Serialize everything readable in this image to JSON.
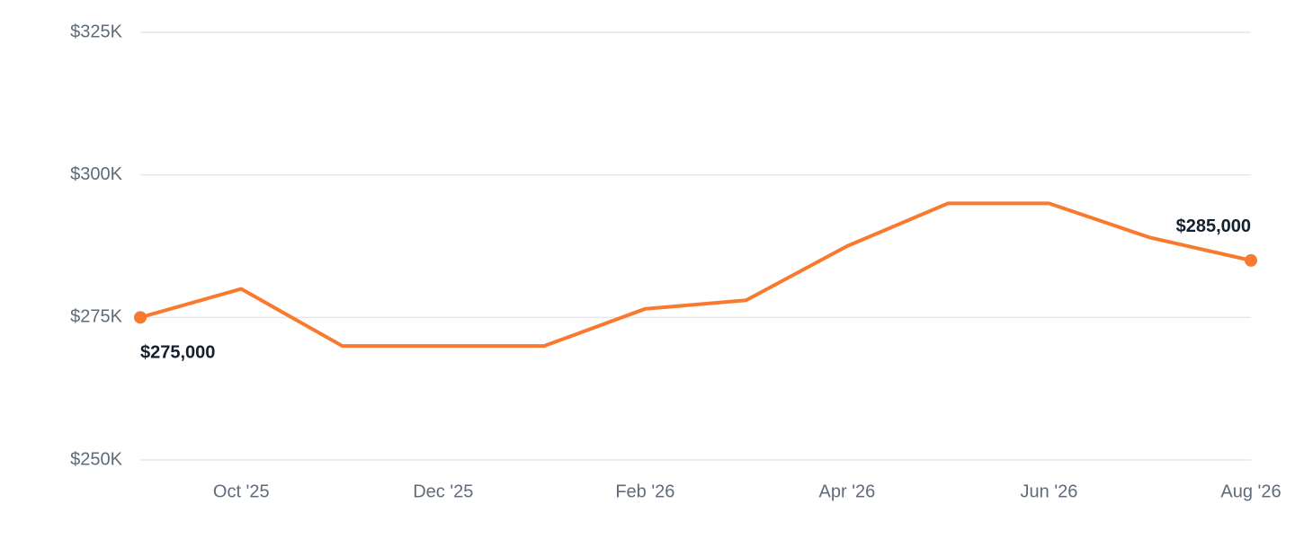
{
  "chart_data": {
    "type": "line",
    "categories": [
      null,
      "Oct '25",
      null,
      "Dec '25",
      null,
      "Feb '26",
      null,
      "Apr '26",
      null,
      "Jun '26",
      null,
      "Aug '26"
    ],
    "values": [
      275000,
      280000,
      270000,
      270000,
      270000,
      276500,
      278000,
      287500,
      295000,
      295000,
      289000,
      285000
    ],
    "value_labels": [
      "$275,000",
      null,
      null,
      null,
      null,
      null,
      null,
      null,
      null,
      null,
      null,
      "$285,000"
    ],
    "color": "#f97a2e",
    "ylim": [
      250000,
      325000
    ],
    "yticks": [
      {
        "value": 250000,
        "label": "$250K"
      },
      {
        "value": 275000,
        "label": "$275K"
      },
      {
        "value": 300000,
        "label": "$300K"
      },
      {
        "value": 325000,
        "label": "$325K"
      }
    ],
    "grid": true
  }
}
